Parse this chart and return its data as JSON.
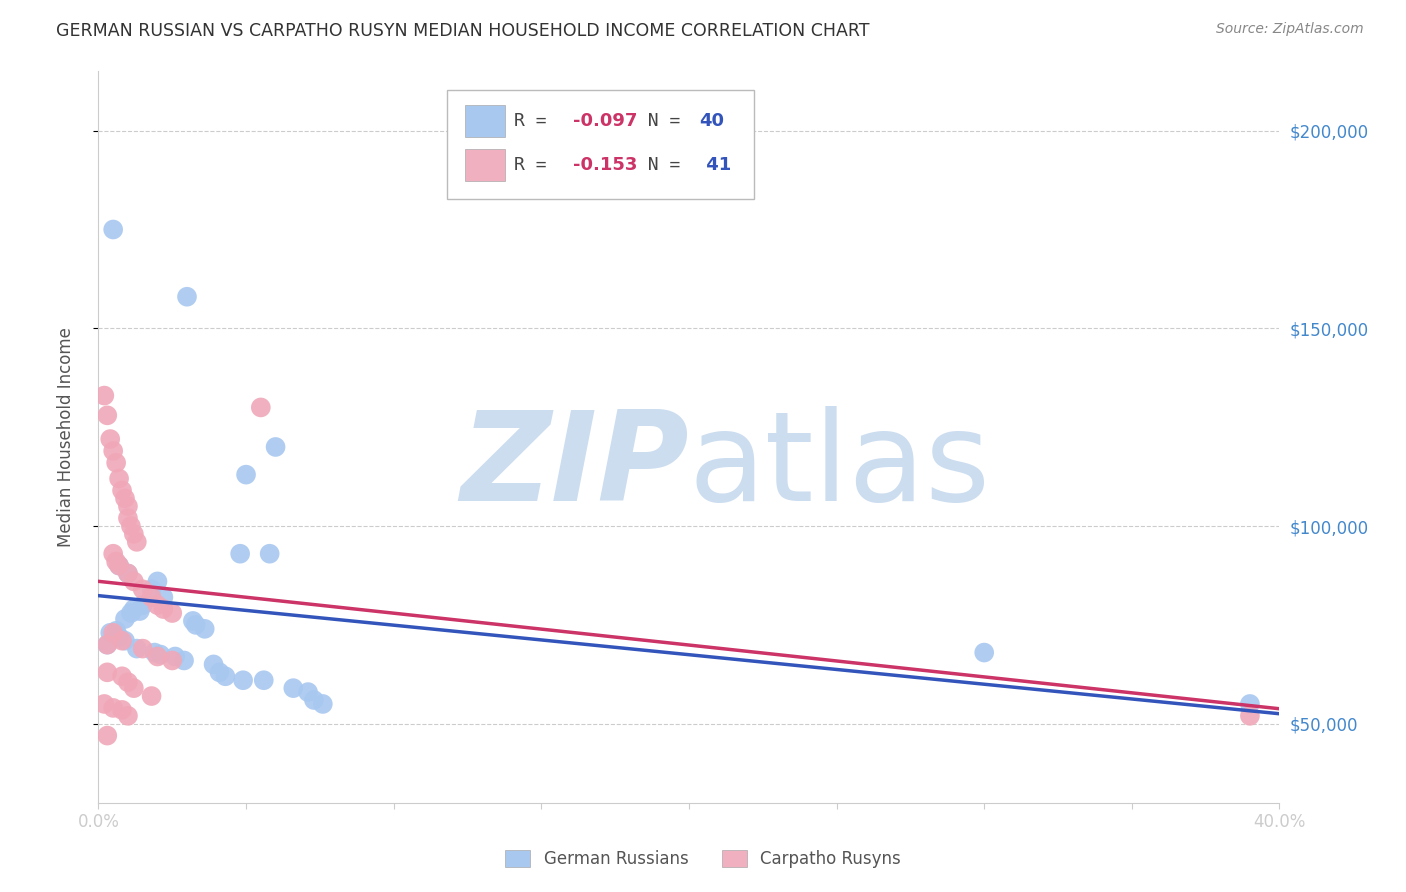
{
  "title": "GERMAN RUSSIAN VS CARPATHO RUSYN MEDIAN HOUSEHOLD INCOME CORRELATION CHART",
  "source": "Source: ZipAtlas.com",
  "ylabel": "Median Household Income",
  "xlim": [
    0.0,
    0.4
  ],
  "ylim": [
    30000,
    215000
  ],
  "yticks": [
    50000,
    100000,
    150000,
    200000
  ],
  "xticks": [
    0.0,
    0.05,
    0.1,
    0.15,
    0.2,
    0.25,
    0.3,
    0.35,
    0.4
  ],
  "xtick_labels": [
    "0.0%",
    "",
    "",
    "",
    "",
    "",
    "",
    "",
    "40.0%"
  ],
  "blue_color": "#a8c8f0",
  "pink_color": "#f0a8b8",
  "blue_line_color": "#3355bb",
  "pink_line_color": "#cc3366",
  "legend_blue_color": "#a8c8f0",
  "legend_pink_color": "#f0b0c0",
  "R_blue": -0.097,
  "N_blue": 40,
  "R_pink": -0.153,
  "N_pink": 41,
  "watermark_zip": "ZIP",
  "watermark_atlas": "atlas",
  "watermark_color": "#ccddf0",
  "background_color": "#ffffff",
  "grid_color": "#cccccc",
  "right_ytick_color": "#4488cc",
  "blue_dots": [
    [
      0.005,
      175000
    ],
    [
      0.03,
      158000
    ],
    [
      0.06,
      120000
    ],
    [
      0.05,
      113000
    ],
    [
      0.058,
      93000
    ],
    [
      0.048,
      93000
    ],
    [
      0.007,
      90000
    ],
    [
      0.01,
      88000
    ],
    [
      0.02,
      86000
    ],
    [
      0.018,
      84000
    ],
    [
      0.022,
      82000
    ],
    [
      0.015,
      80000
    ],
    [
      0.012,
      79000
    ],
    [
      0.014,
      78500
    ],
    [
      0.011,
      78000
    ],
    [
      0.009,
      76500
    ],
    [
      0.032,
      76000
    ],
    [
      0.033,
      75000
    ],
    [
      0.036,
      74000
    ],
    [
      0.006,
      73500
    ],
    [
      0.004,
      73000
    ],
    [
      0.007,
      72000
    ],
    [
      0.009,
      71000
    ],
    [
      0.003,
      70000
    ],
    [
      0.013,
      69000
    ],
    [
      0.019,
      68000
    ],
    [
      0.021,
      67500
    ],
    [
      0.026,
      67000
    ],
    [
      0.029,
      66000
    ],
    [
      0.039,
      65000
    ],
    [
      0.041,
      63000
    ],
    [
      0.043,
      62000
    ],
    [
      0.049,
      61000
    ],
    [
      0.056,
      61000
    ],
    [
      0.066,
      59000
    ],
    [
      0.071,
      58000
    ],
    [
      0.073,
      56000
    ],
    [
      0.076,
      55000
    ],
    [
      0.3,
      68000
    ],
    [
      0.39,
      55000
    ]
  ],
  "pink_dots": [
    [
      0.002,
      133000
    ],
    [
      0.003,
      128000
    ],
    [
      0.004,
      122000
    ],
    [
      0.005,
      119000
    ],
    [
      0.006,
      116000
    ],
    [
      0.007,
      112000
    ],
    [
      0.055,
      130000
    ],
    [
      0.008,
      109000
    ],
    [
      0.009,
      107000
    ],
    [
      0.01,
      105000
    ],
    [
      0.01,
      102000
    ],
    [
      0.011,
      100000
    ],
    [
      0.012,
      98000
    ],
    [
      0.013,
      96000
    ],
    [
      0.005,
      93000
    ],
    [
      0.006,
      91000
    ],
    [
      0.007,
      90000
    ],
    [
      0.01,
      88000
    ],
    [
      0.012,
      86000
    ],
    [
      0.015,
      84000
    ],
    [
      0.018,
      82000
    ],
    [
      0.02,
      80000
    ],
    [
      0.022,
      79000
    ],
    [
      0.025,
      78000
    ],
    [
      0.005,
      73000
    ],
    [
      0.008,
      71000
    ],
    [
      0.003,
      70000
    ],
    [
      0.015,
      69000
    ],
    [
      0.02,
      67000
    ],
    [
      0.025,
      66000
    ],
    [
      0.003,
      63000
    ],
    [
      0.008,
      62000
    ],
    [
      0.01,
      60500
    ],
    [
      0.012,
      59000
    ],
    [
      0.018,
      57000
    ],
    [
      0.002,
      55000
    ],
    [
      0.005,
      54000
    ],
    [
      0.008,
      53500
    ],
    [
      0.01,
      52000
    ],
    [
      0.003,
      47000
    ],
    [
      0.39,
      52000
    ]
  ]
}
